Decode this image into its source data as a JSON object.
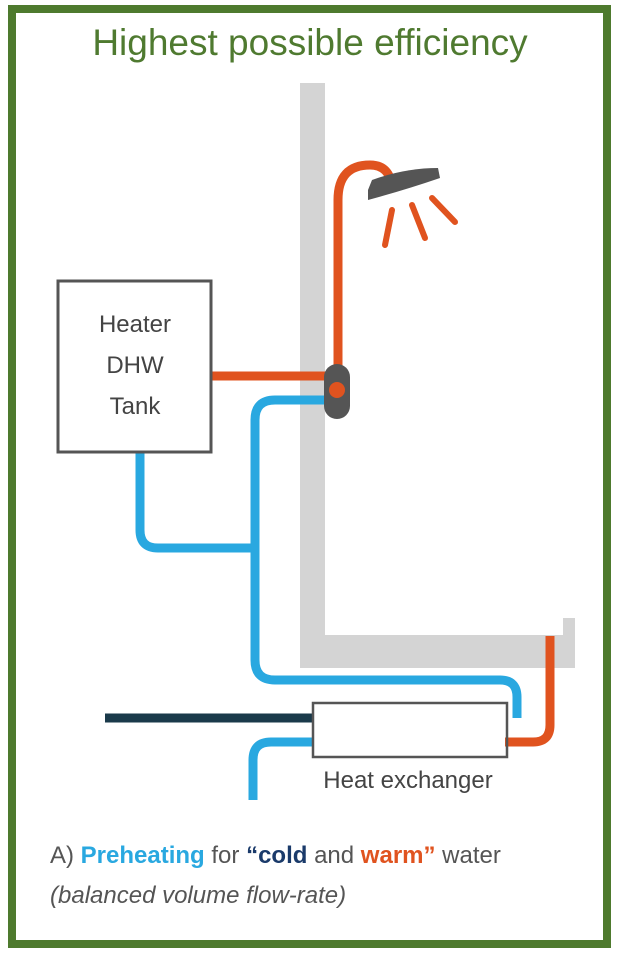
{
  "header": {
    "title": "Highest possible efficiency"
  },
  "heater": {
    "lines": [
      "Heater",
      "DHW",
      "Tank"
    ]
  },
  "exchanger": {
    "label": "Heat exchanger"
  },
  "caption": {
    "parts": [
      "A)",
      "Preheating",
      "for",
      "“cold",
      "and",
      "warm”",
      "water"
    ],
    "note": "(balanced volume flow-rate)"
  }
}
